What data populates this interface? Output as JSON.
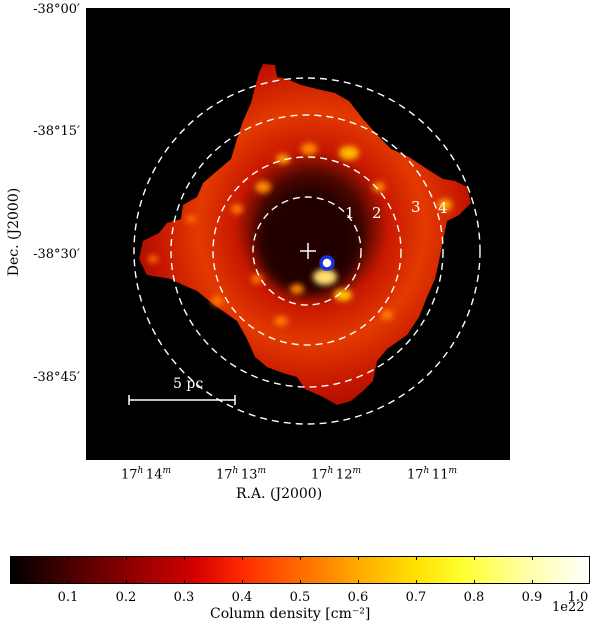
{
  "axes": {
    "ylabel": "Dec. (J2000)",
    "xlabel": "R.A. (J2000)",
    "yticks": [
      "-38°00′",
      "-38°15′",
      "-38°30′",
      "-38°45′"
    ],
    "xticks": [
      {
        "h": "17",
        "m": "14"
      },
      {
        "h": "17",
        "m": "13"
      },
      {
        "h": "17",
        "m": "12"
      },
      {
        "h": "17",
        "m": "11"
      }
    ]
  },
  "map": {
    "scalebar_label": "5 pc",
    "ring_labels": [
      "1",
      "2",
      "3",
      "4"
    ],
    "colors": {
      "background": "#000000",
      "shell": "#cc1a00",
      "bright": "#ffd21a",
      "marker": "#1d2fd6",
      "rings": "#ffffff"
    }
  },
  "colorbar": {
    "label": "Column density [cm⁻²]",
    "ticks": [
      "0.1",
      "0.2",
      "0.3",
      "0.4",
      "0.5",
      "0.6",
      "0.7",
      "0.8",
      "0.9",
      "1.0"
    ],
    "offset": "1e22",
    "range": [
      0,
      1.0
    ]
  }
}
